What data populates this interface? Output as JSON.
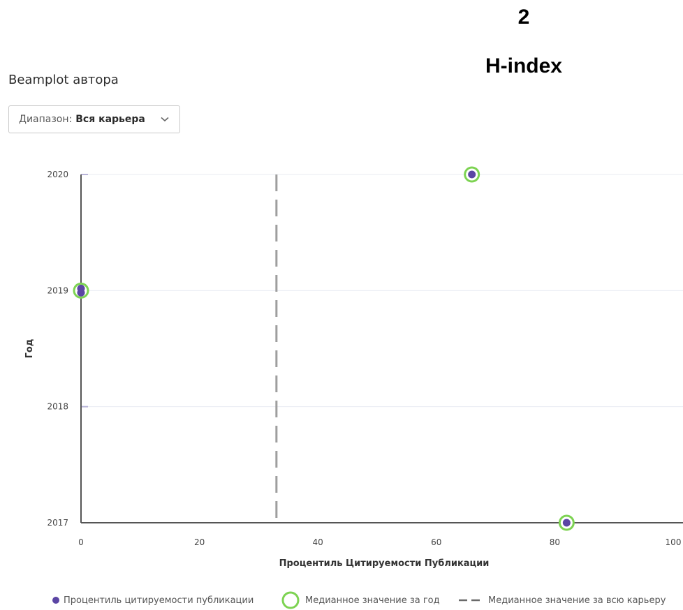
{
  "hindex": {
    "value": "2",
    "label": "H-index"
  },
  "section": {
    "title": "Beamplot автора"
  },
  "range": {
    "label": "Диапазон:",
    "value": "Вся карьера"
  },
  "legend": {
    "points": "Процентиль цитируемости публикации",
    "year_median": "Медианное значение за год",
    "career_median": "Медианное значение за всю карьеру"
  },
  "colors": {
    "point": "#5b45a4",
    "median_ring": "#7dd352",
    "career_line": "#9e9e9e",
    "axis": "#555555",
    "grid": "#e9ebf2"
  },
  "chart_data": {
    "type": "scatter",
    "xlabel": "Процентиль Цитируемости Публикации",
    "ylabel": "Год",
    "xlim": [
      0,
      100
    ],
    "ylim": [
      2017,
      2020
    ],
    "xticks": [
      0,
      20,
      40,
      60,
      80,
      100
    ],
    "yticks": [
      2017,
      2018,
      2019,
      2020
    ],
    "grid": "horizontal",
    "legend_position": "bottom",
    "career_median": 33,
    "series": [
      {
        "name": "Процентиль цитируемости публикации",
        "points": [
          {
            "x": 66,
            "y": 2020
          },
          {
            "x": 0,
            "y": 2019
          },
          {
            "x": 0,
            "y": 2019
          },
          {
            "x": 82,
            "y": 2017
          }
        ]
      },
      {
        "name": "Медианное значение за год",
        "points": [
          {
            "x": 66,
            "y": 2020
          },
          {
            "x": 0,
            "y": 2019
          },
          {
            "x": 82,
            "y": 2017
          }
        ]
      }
    ]
  }
}
